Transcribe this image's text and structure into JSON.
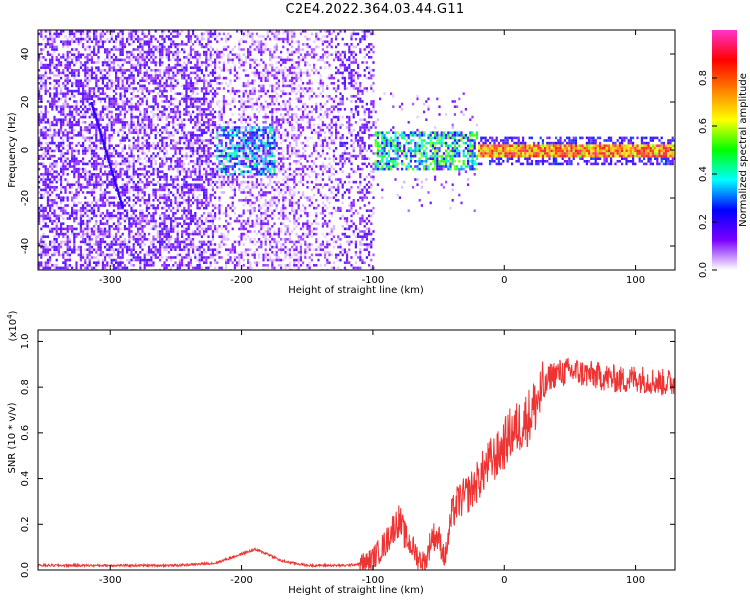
{
  "title": "C2E4.2022.364.03.44.G11",
  "chart_data": [
    {
      "type": "heatmap",
      "xlabel": "Height of straight line (km)",
      "ylabel": "Frequency (Hz)",
      "xlim": [
        -355,
        130
      ],
      "ylim": [
        -50,
        50
      ],
      "xticks": [
        -300,
        -200,
        -100,
        0,
        100
      ],
      "yticks": [
        -40,
        -20,
        0,
        20,
        40
      ],
      "colorbar": {
        "label": "Normalized spectral amplitude",
        "range": [
          0.0,
          1.0
        ],
        "ticks": [
          0.0,
          0.2,
          0.4,
          0.6,
          0.8
        ],
        "colormap": [
          "#ffffff",
          "#7a00ff",
          "#0000ff",
          "#00ffff",
          "#00ff00",
          "#ffff00",
          "#ff8000",
          "#ff0000",
          "#ff33cc"
        ]
      },
      "features": [
        {
          "name": "dense band",
          "x_range": [
            -20,
            130
          ],
          "freq": 0,
          "amplitude": 0.85
        },
        {
          "name": "scattered noise",
          "x_range": [
            -355,
            -100
          ],
          "amplitude": 0.3
        }
      ]
    },
    {
      "type": "line",
      "xlabel": "Height of straight line (km)",
      "ylabel": "SNR (10 * v/v)",
      "y_scale_label": "(x10",
      "y_scale_exp": "4",
      "xlim": [
        -355,
        130
      ],
      "ylim": [
        0,
        1.05
      ],
      "xticks": [
        -300,
        -200,
        -100,
        0,
        100
      ],
      "yticks": [
        0.0,
        0.2,
        0.4,
        0.6,
        0.8,
        1.0
      ],
      "color": "#ee3333",
      "series": [
        {
          "x": [
            -355,
            -300,
            -250,
            -220,
            -200,
            -190,
            -180,
            -170,
            -150,
            -120,
            -105,
            -100,
            -90,
            -85,
            -80,
            -75,
            -70,
            -65,
            -60,
            -55,
            -50,
            -45,
            -40,
            -35,
            -30,
            -25,
            -20,
            -15,
            -10,
            -5,
            0,
            5,
            10,
            15,
            20,
            25,
            30,
            35,
            40,
            50,
            60,
            70,
            80,
            90,
            100,
            110,
            120,
            130
          ],
          "y": [
            0.02,
            0.02,
            0.02,
            0.03,
            0.07,
            0.09,
            0.07,
            0.04,
            0.02,
            0.02,
            0.03,
            0.05,
            0.12,
            0.18,
            0.22,
            0.14,
            0.1,
            0.05,
            0.03,
            0.15,
            0.14,
            0.05,
            0.24,
            0.3,
            0.32,
            0.35,
            0.39,
            0.44,
            0.48,
            0.5,
            0.55,
            0.6,
            0.62,
            0.65,
            0.68,
            0.74,
            0.78,
            0.85,
            0.86,
            0.87,
            0.86,
            0.85,
            0.84,
            0.83,
            0.84,
            0.83,
            0.82,
            0.82
          ]
        }
      ]
    }
  ]
}
